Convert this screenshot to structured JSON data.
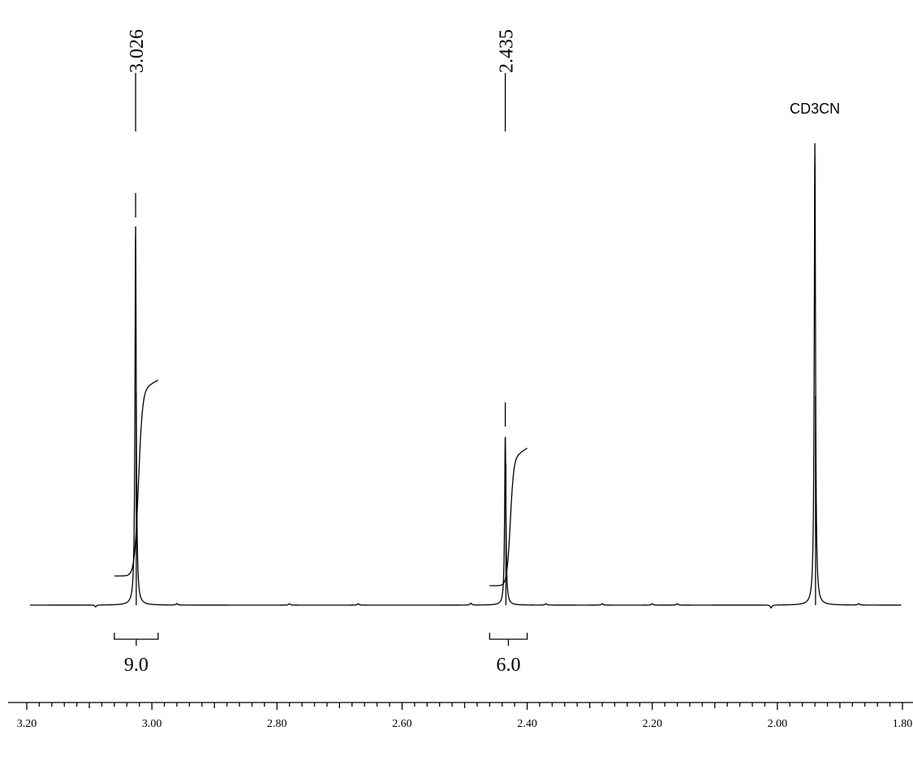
{
  "chart_data": {
    "type": "line",
    "title": "",
    "xlabel": "",
    "ylabel": "",
    "x_axis": {
      "direction": "descending",
      "xlim": [
        3.2,
        1.8
      ],
      "major_step": 0.2,
      "minor_step": 0.02,
      "tick_labels": [
        "3.20",
        "3.00",
        "2.80",
        "2.60",
        "2.40",
        "2.20",
        "2.00",
        "1.80"
      ]
    },
    "ylim": [
      0,
      1
    ],
    "peaks": [
      {
        "ppm": 3.026,
        "label": "3.026",
        "height": 0.78
      },
      {
        "ppm": 2.435,
        "label": "2.435",
        "height": 0.35
      },
      {
        "ppm": 1.94,
        "label": "CD3CN",
        "height": 0.95
      }
    ],
    "shoulders": [
      {
        "ppm": 3.026,
        "height": 0.44
      },
      {
        "ppm": 2.435,
        "height": 0.29
      },
      {
        "ppm": 1.94,
        "height": 0.43
      }
    ],
    "minor_features": [
      {
        "ppm": 3.09,
        "height": -0.004
      },
      {
        "ppm": 2.96,
        "height": 0.003
      },
      {
        "ppm": 2.78,
        "height": 0.003
      },
      {
        "ppm": 2.67,
        "height": 0.003
      },
      {
        "ppm": 2.49,
        "height": 0.004
      },
      {
        "ppm": 2.37,
        "height": 0.003
      },
      {
        "ppm": 2.28,
        "height": 0.003
      },
      {
        "ppm": 2.2,
        "height": 0.003
      },
      {
        "ppm": 2.16,
        "height": 0.003
      },
      {
        "ppm": 2.01,
        "height": -0.006
      },
      {
        "ppm": 1.87,
        "height": 0.003
      }
    ],
    "integrals": [
      {
        "label": "9.0",
        "from": 3.06,
        "to": 2.99,
        "curve_start_height": 0.06,
        "curve_end_height": 0.44
      },
      {
        "label": "6.0",
        "from": 2.46,
        "to": 2.4,
        "curve_start_height": 0.04,
        "curve_end_height": 0.3
      }
    ]
  }
}
